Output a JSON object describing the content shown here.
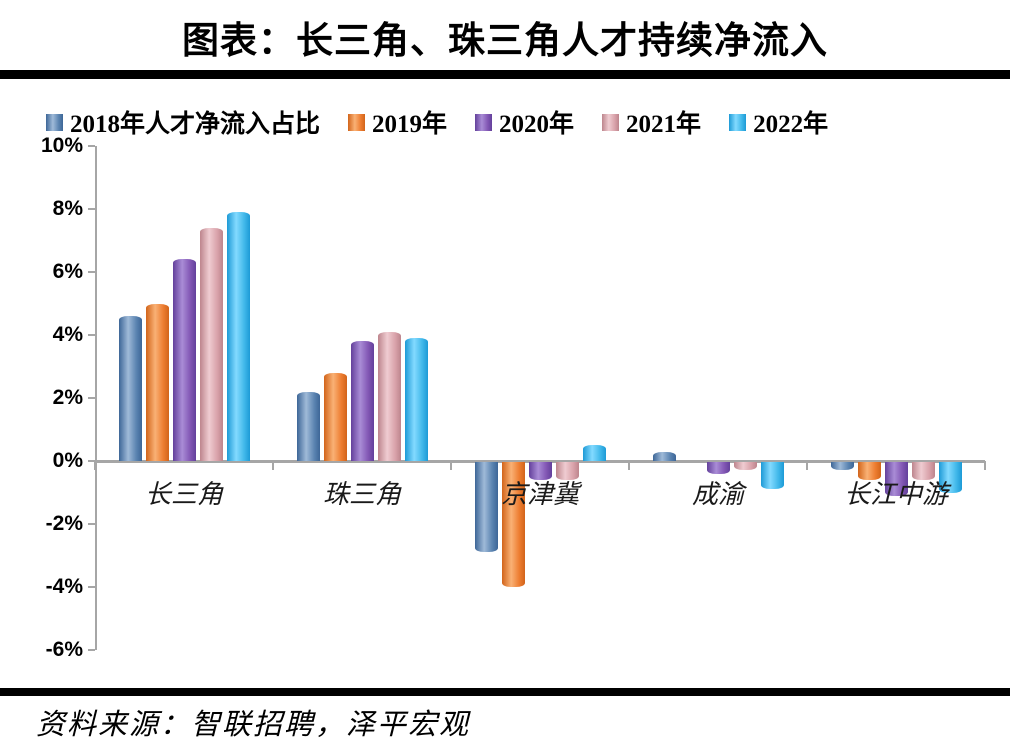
{
  "title": "图表：长三角、珠三角人才持续净流入",
  "source_note": "资料来源：智联招聘，泽平宏观",
  "chart_data": {
    "type": "bar",
    "title": "图表：长三角、珠三角人才持续净流入",
    "categories": [
      "长三角",
      "珠三角",
      "京津冀",
      "成渝",
      "长江中游"
    ],
    "series": [
      {
        "name": "2018年人才净流入占比",
        "color": "#5b84b1",
        "color_light": "#9fbad8",
        "color_dark": "#3d6697",
        "values": [
          4.6,
          2.2,
          -2.9,
          0.3,
          -0.3
        ]
      },
      {
        "name": "2019年",
        "color": "#ed7d31",
        "color_light": "#f9b175",
        "color_dark": "#d2641a",
        "values": [
          5.0,
          2.8,
          -4.0,
          0.0,
          -0.6
        ]
      },
      {
        "name": "2020年",
        "color": "#8257b4",
        "color_light": "#a98cd6",
        "color_dark": "#63409b",
        "values": [
          6.4,
          3.8,
          -0.6,
          -0.4,
          -1.1
        ]
      },
      {
        "name": "2021年",
        "color": "#d9a2aa",
        "color_light": "#efccd1",
        "color_dark": "#bd858d",
        "values": [
          7.4,
          4.1,
          -0.6,
          -0.3,
          -0.6
        ]
      },
      {
        "name": "2022年",
        "color": "#41b8ea",
        "color_light": "#83daff",
        "color_dark": "#1d9ad6",
        "values": [
          7.9,
          3.9,
          0.5,
          -0.9,
          -1.0
        ]
      }
    ],
    "xlabel": "",
    "ylabel": "",
    "y_ticks": [
      "10%",
      "8%",
      "6%",
      "4%",
      "2%",
      "0%",
      "-2%",
      "-4%",
      "-6%"
    ],
    "ylim": [
      -6,
      10
    ],
    "y_tick_step": 2,
    "grid": false,
    "legend_position": "top",
    "axis_color": "#a6a6a6"
  }
}
